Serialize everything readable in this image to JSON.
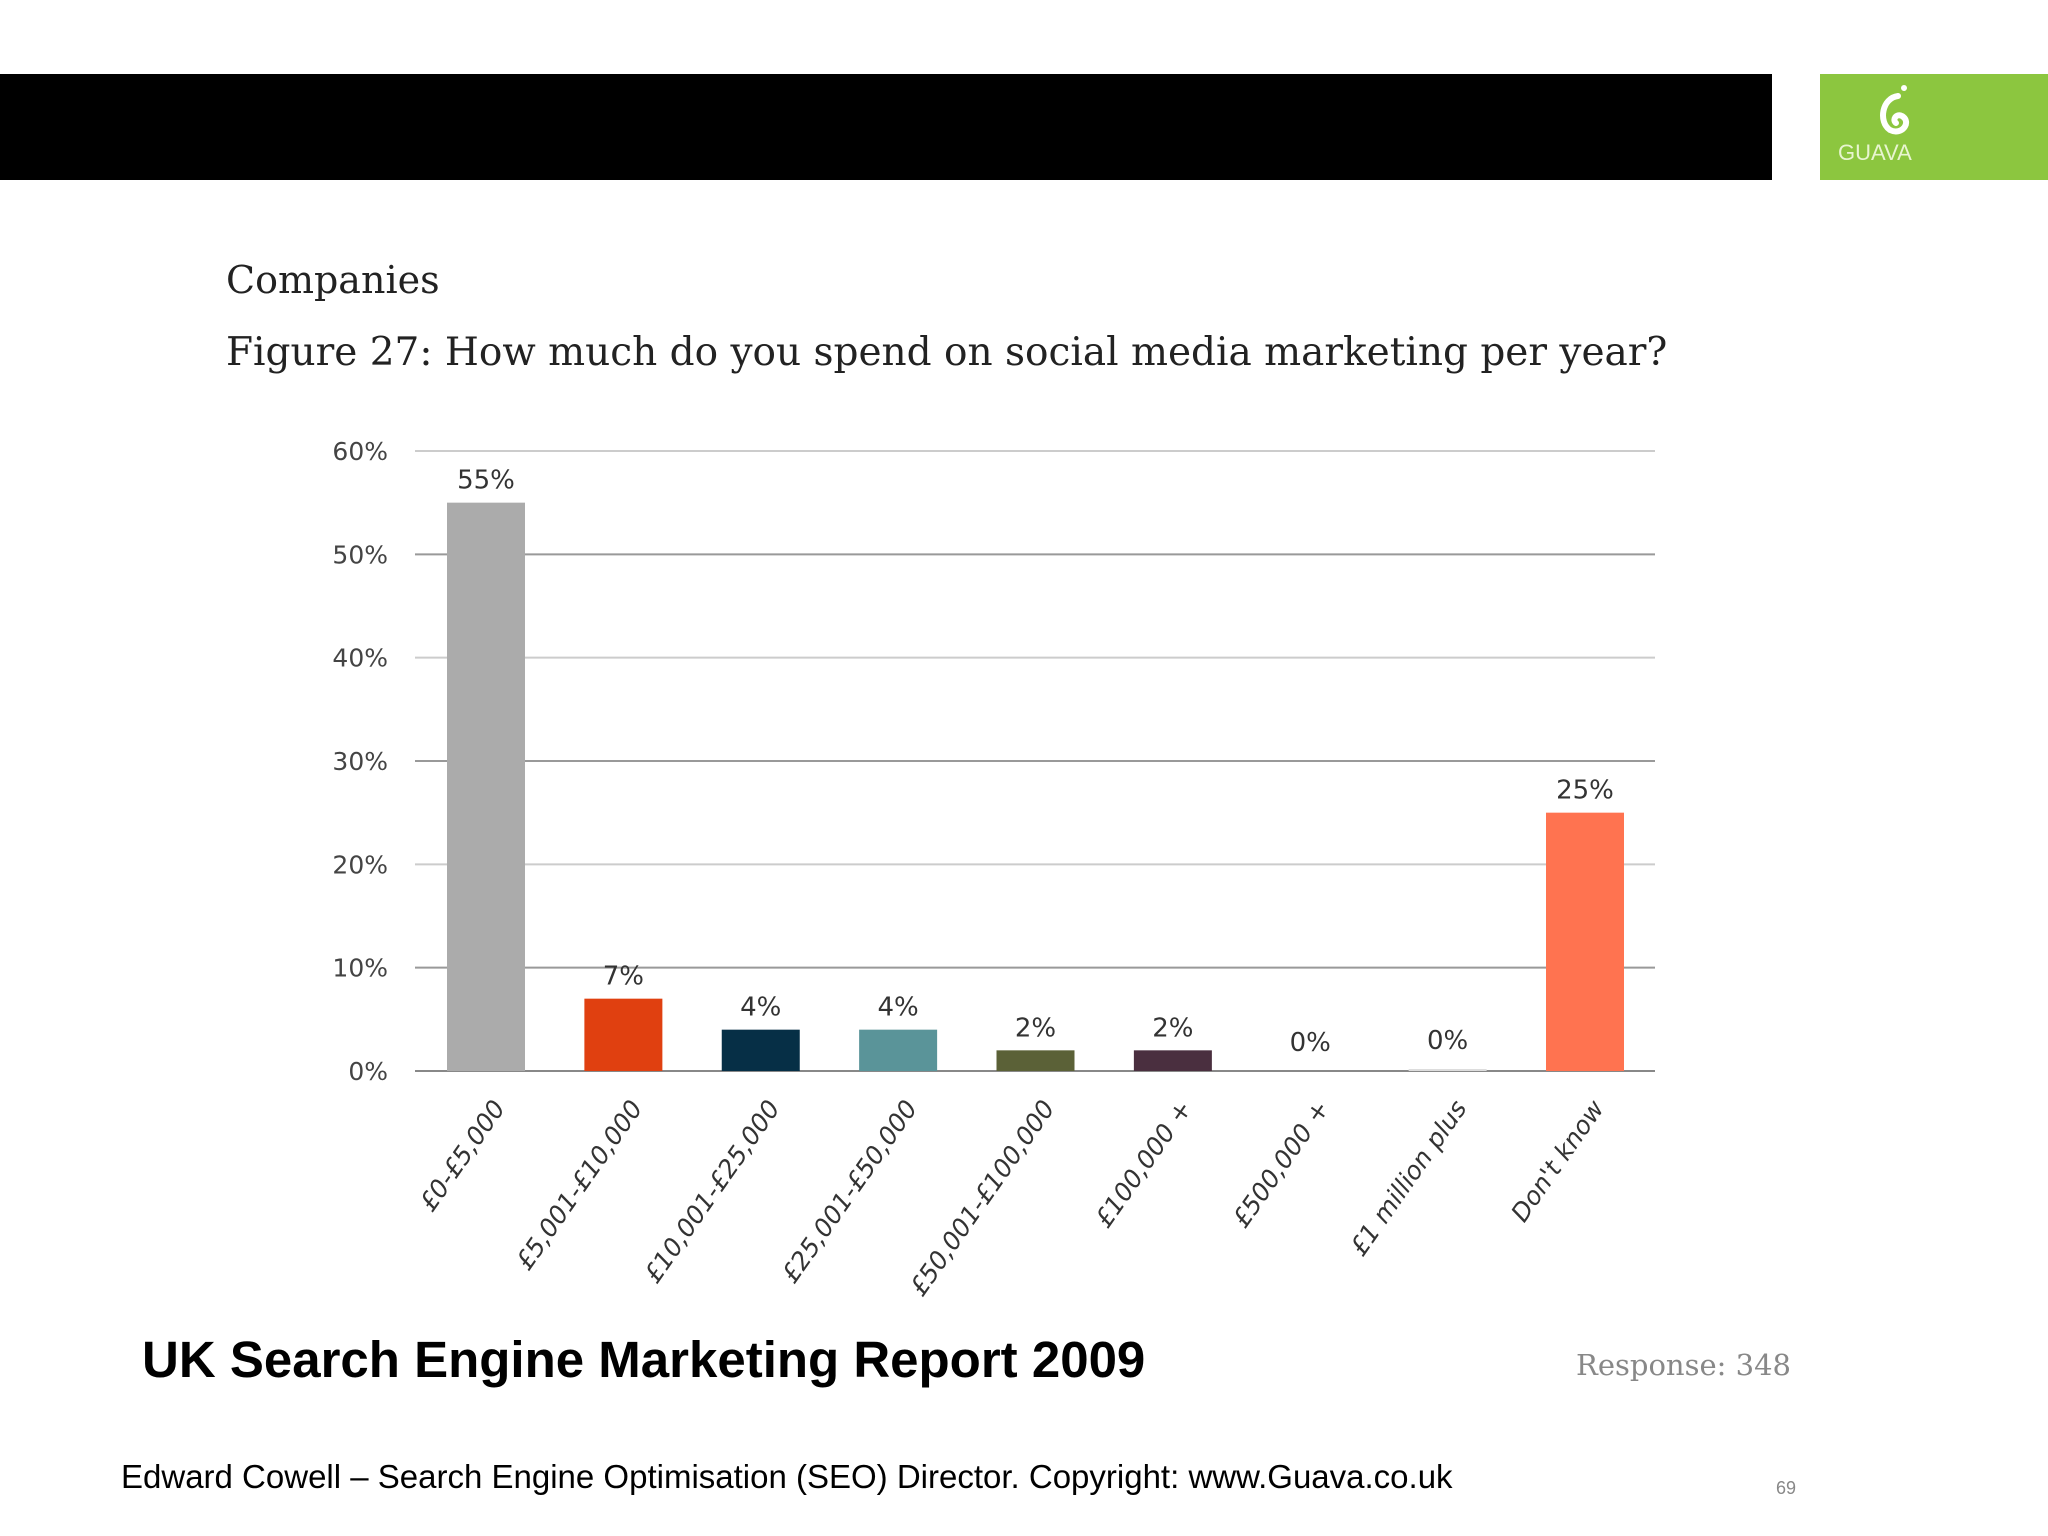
{
  "header": {
    "logo_text": "GUAVA",
    "logo_color": "#8cc63f"
  },
  "section_label": "Companies",
  "chart_data": {
    "type": "bar",
    "title": "Figure 27: How much do you spend on social media marketing per year?",
    "categories": [
      "£0-£5,000",
      "£5,001-£10,000",
      "£10,001-£25,000",
      "£25,001-£50,000",
      "£50,001-£100,000",
      "£100,000 +",
      "£500,000 +",
      "£1 million plus",
      "Don't know"
    ],
    "values": [
      55,
      7,
      4,
      4,
      2,
      2,
      0,
      0,
      25
    ],
    "data_labels": [
      "55%",
      "7%",
      "4%",
      "4%",
      "2%",
      "2%",
      "0%",
      "0%",
      "25%"
    ],
    "colors": [
      "#ababab",
      "#e04010",
      "#062f46",
      "#5a9499",
      "#5b6137",
      "#4a2f3f",
      "#dddddd",
      "#dddddd",
      "#ff7350"
    ],
    "yticks": [
      "0%",
      "10%",
      "20%",
      "30%",
      "40%",
      "50%",
      "60%"
    ],
    "ylim": [
      0,
      60
    ],
    "grid": true,
    "xlabel": "",
    "ylabel": ""
  },
  "footer": {
    "report_title": "UK Search Engine Marketing Report 2009",
    "response": "Response: 348",
    "credit": "Edward Cowell – Search Engine Optimisation (SEO) Director. Copyright: www.Guava.co.uk",
    "page_number": "69"
  }
}
